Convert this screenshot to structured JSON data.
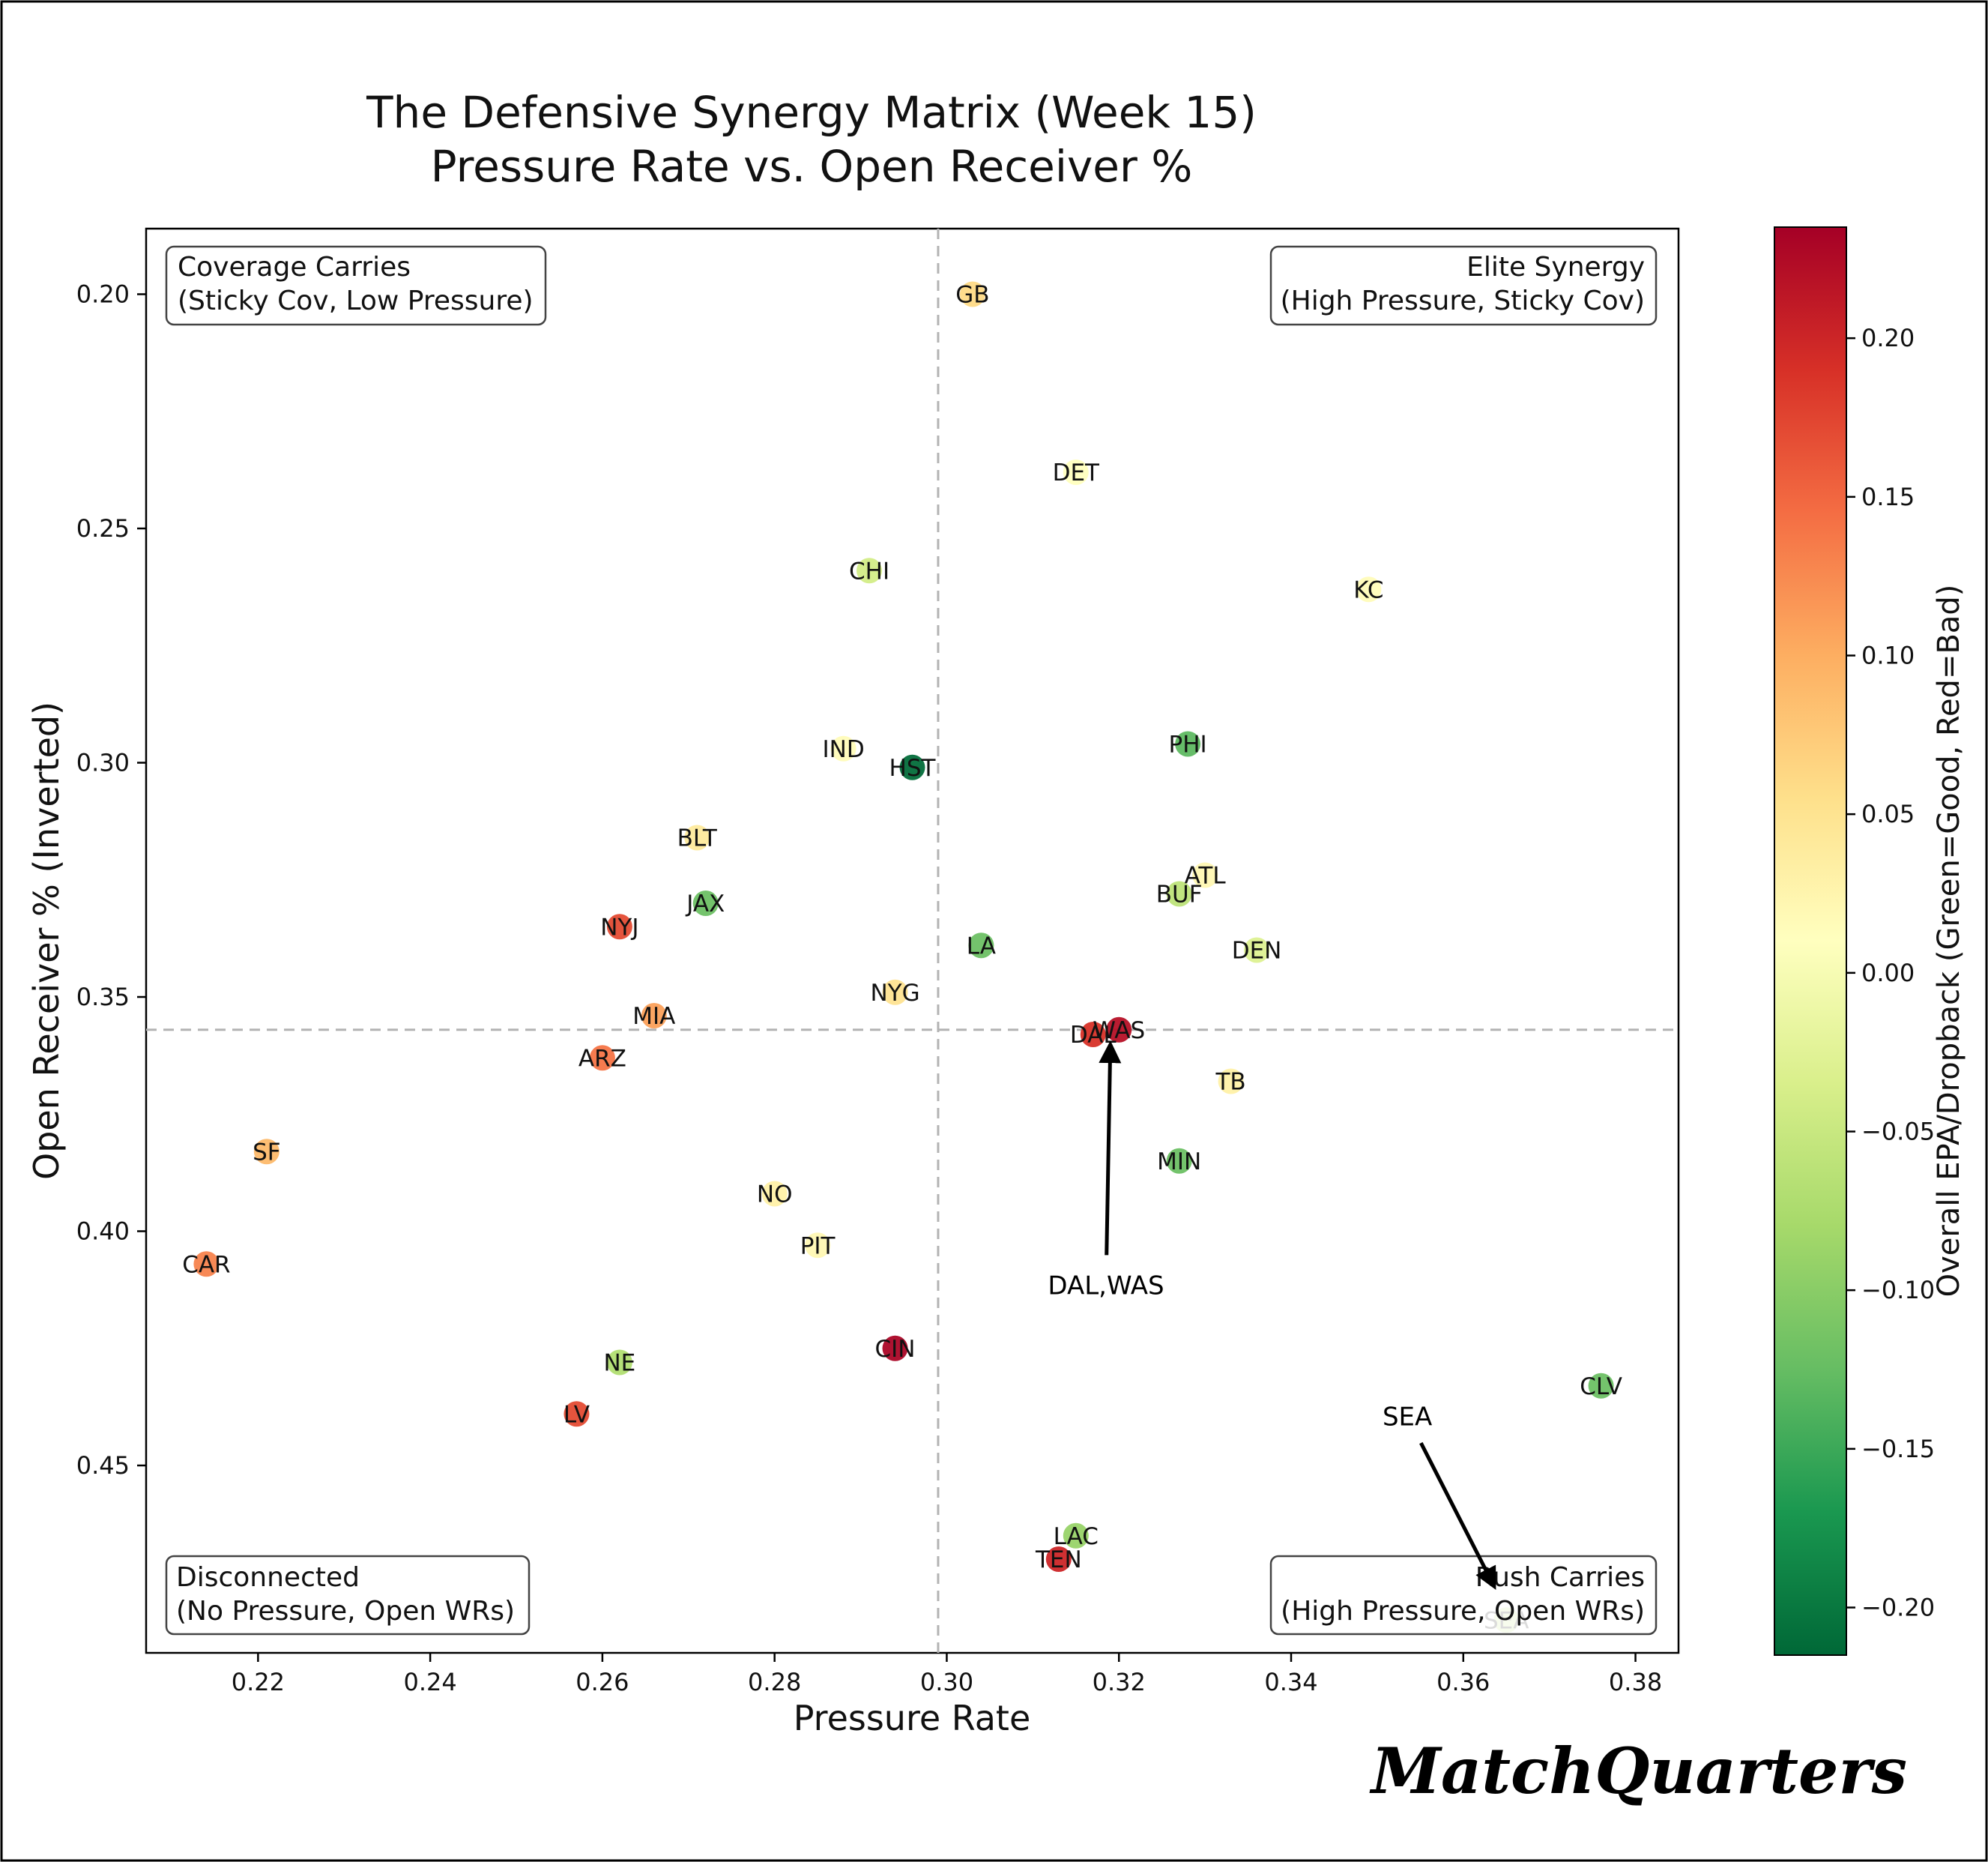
{
  "chart_data": {
    "type": "scatter",
    "title": "The Defensive Synergy Matrix (Week 15)",
    "subtitle": "Pressure Rate vs. Open Receiver %",
    "xlabel": "Pressure Rate",
    "ylabel": "Open Receiver % (Inverted)",
    "xlim": [
      0.207,
      0.385
    ],
    "ylim": [
      0.186,
      0.49
    ],
    "y_inverted": true,
    "xticks": [
      0.22,
      0.24,
      0.26,
      0.28,
      0.3,
      0.32,
      0.34,
      0.36,
      0.38
    ],
    "xtick_labels": [
      "0.22",
      "0.24",
      "0.26",
      "0.28",
      "0.30",
      "0.32",
      "0.34",
      "0.36",
      "0.38"
    ],
    "yticks": [
      0.2,
      0.25,
      0.3,
      0.35,
      0.4,
      0.45
    ],
    "ytick_labels": [
      "0.20",
      "0.25",
      "0.30",
      "0.35",
      "0.40",
      "0.45"
    ],
    "grid": false,
    "reference_lines": {
      "x": 0.299,
      "y": 0.357
    },
    "colorbar": {
      "label": "Overall EPA/Dropback (Green=Good, Red=Bad)",
      "colormap": "RdYlGn_r",
      "vmin": -0.215,
      "vmax": 0.235,
      "ticks": [
        0.2,
        0.15,
        0.1,
        0.05,
        0.0,
        -0.05,
        -0.1,
        -0.15,
        -0.2
      ],
      "tick_labels": [
        "0.20",
        "0.15",
        "0.10",
        "0.05",
        "0.00",
        "−0.05",
        "−0.10",
        "−0.15",
        "−0.20"
      ]
    },
    "quadrants": [
      {
        "id": "top-left",
        "line1": "Coverage Carries",
        "line2": "(Sticky Cov, Low Pressure)"
      },
      {
        "id": "top-right",
        "line1": "Elite Synergy",
        "line2": "(High Pressure, Sticky Cov)"
      },
      {
        "id": "bottom-left",
        "line1": "Disconnected",
        "line2": "(No Pressure, Open WRs)"
      },
      {
        "id": "bottom-right",
        "line1": "Rush Carries",
        "line2": "(High Pressure, Open WRs)"
      }
    ],
    "annotations": [
      {
        "text": "DAL,WAS",
        "text_x": 0.3185,
        "text_y": 0.4115,
        "point_x": 0.319,
        "point_y": 0.3605
      },
      {
        "text": "SEA",
        "text_x": 0.3535,
        "text_y": 0.4395,
        "point_x": 0.3635,
        "point_y": 0.4755
      }
    ],
    "points": [
      {
        "team": "GB",
        "x": 0.303,
        "y": 0.2,
        "epa": 0.06
      },
      {
        "team": "DET",
        "x": 0.315,
        "y": 0.238,
        "epa": 0.01
      },
      {
        "team": "CHI",
        "x": 0.291,
        "y": 0.259,
        "epa": -0.04
      },
      {
        "team": "KC",
        "x": 0.349,
        "y": 0.263,
        "epa": 0.015
      },
      {
        "team": "IND",
        "x": 0.288,
        "y": 0.297,
        "epa": 0.015
      },
      {
        "team": "HST",
        "x": 0.296,
        "y": 0.301,
        "epa": -0.21
      },
      {
        "team": "PHI",
        "x": 0.328,
        "y": 0.296,
        "epa": -0.13
      },
      {
        "team": "BLT",
        "x": 0.271,
        "y": 0.316,
        "epa": 0.04
      },
      {
        "team": "ATL",
        "x": 0.33,
        "y": 0.324,
        "epa": 0.02
      },
      {
        "team": "BUF",
        "x": 0.327,
        "y": 0.328,
        "epa": -0.06
      },
      {
        "team": "JAX",
        "x": 0.272,
        "y": 0.33,
        "epa": -0.12
      },
      {
        "team": "NYJ",
        "x": 0.262,
        "y": 0.335,
        "epa": 0.17
      },
      {
        "team": "LA",
        "x": 0.304,
        "y": 0.339,
        "epa": -0.12
      },
      {
        "team": "DEN",
        "x": 0.336,
        "y": 0.34,
        "epa": -0.03
      },
      {
        "team": "NYG",
        "x": 0.294,
        "y": 0.349,
        "epa": 0.05
      },
      {
        "team": "MIA",
        "x": 0.266,
        "y": 0.354,
        "epa": 0.11
      },
      {
        "team": "WAS",
        "x": 0.32,
        "y": 0.357,
        "epa": 0.22
      },
      {
        "team": "DAL",
        "x": 0.317,
        "y": 0.358,
        "epa": 0.19
      },
      {
        "team": "ARZ",
        "x": 0.26,
        "y": 0.363,
        "epa": 0.14
      },
      {
        "team": "TB",
        "x": 0.333,
        "y": 0.368,
        "epa": 0.03
      },
      {
        "team": "SF",
        "x": 0.221,
        "y": 0.383,
        "epa": 0.09
      },
      {
        "team": "MIN",
        "x": 0.327,
        "y": 0.385,
        "epa": -0.12
      },
      {
        "team": "NO",
        "x": 0.28,
        "y": 0.392,
        "epa": 0.03
      },
      {
        "team": "PIT",
        "x": 0.285,
        "y": 0.403,
        "epa": 0.02
      },
      {
        "team": "CAR",
        "x": 0.214,
        "y": 0.407,
        "epa": 0.13
      },
      {
        "team": "CIN",
        "x": 0.294,
        "y": 0.425,
        "epa": 0.23
      },
      {
        "team": "NE",
        "x": 0.262,
        "y": 0.428,
        "epa": -0.07
      },
      {
        "team": "CLV",
        "x": 0.376,
        "y": 0.433,
        "epa": -0.12
      },
      {
        "team": "LV",
        "x": 0.257,
        "y": 0.439,
        "epa": 0.17
      },
      {
        "team": "LAC",
        "x": 0.315,
        "y": 0.465,
        "epa": -0.09
      },
      {
        "team": "TEN",
        "x": 0.313,
        "y": 0.47,
        "epa": 0.2
      },
      {
        "team": "SEA",
        "x": 0.365,
        "y": 0.483,
        "epa": -0.05
      }
    ]
  },
  "brand": {
    "wordmark": "MatchQuarters"
  }
}
